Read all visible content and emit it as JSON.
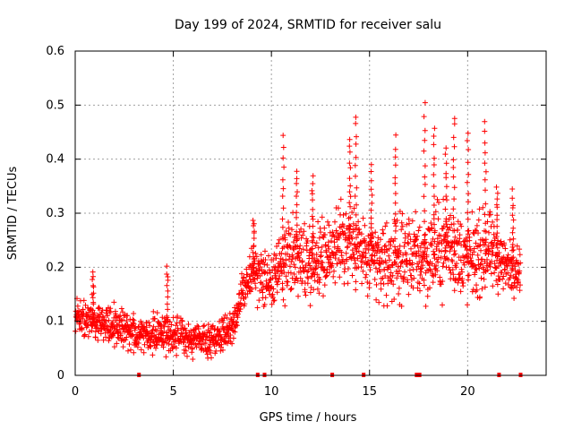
{
  "chart_data": {
    "type": "scatter",
    "title": "Day 199 of 2024, SRMTID for receiver salu",
    "xlabel": "GPS time / hours",
    "ylabel": "SRMTID / TECUs",
    "xlim": [
      0,
      24
    ],
    "ylim": [
      0,
      0.6
    ],
    "x_ticks": [
      0,
      5,
      10,
      15,
      20
    ],
    "x_tick_labels": [
      "0",
      "5",
      "10",
      "15",
      "20"
    ],
    "y_ticks": [
      0,
      0.1,
      0.2,
      0.3,
      0.4,
      0.5,
      0.6
    ],
    "y_tick_labels": [
      "0",
      "0.1",
      "0.2",
      "0.3",
      "0.4",
      "0.5",
      "0.6"
    ],
    "grid": true,
    "marker": "plus",
    "color": "#ff0000",
    "baseline_marker_hours": [
      3.25,
      9.3,
      9.65,
      13.1,
      14.7,
      17.4,
      17.55,
      21.6,
      22.7
    ],
    "envelope": [
      {
        "x": 0.0,
        "center": 0.11,
        "spread": 0.04
      },
      {
        "x": 1.0,
        "center": 0.1,
        "spread": 0.04
      },
      {
        "x": 2.0,
        "center": 0.09,
        "spread": 0.04
      },
      {
        "x": 3.0,
        "center": 0.08,
        "spread": 0.04
      },
      {
        "x": 4.0,
        "center": 0.08,
        "spread": 0.04
      },
      {
        "x": 5.0,
        "center": 0.075,
        "spread": 0.045
      },
      {
        "x": 6.0,
        "center": 0.065,
        "spread": 0.035
      },
      {
        "x": 7.0,
        "center": 0.065,
        "spread": 0.035
      },
      {
        "x": 8.0,
        "center": 0.09,
        "spread": 0.04
      },
      {
        "x": 8.5,
        "center": 0.15,
        "spread": 0.05
      },
      {
        "x": 9.0,
        "center": 0.19,
        "spread": 0.06
      },
      {
        "x": 10.0,
        "center": 0.17,
        "spread": 0.06
      },
      {
        "x": 11.0,
        "center": 0.22,
        "spread": 0.09
      },
      {
        "x": 12.0,
        "center": 0.21,
        "spread": 0.09
      },
      {
        "x": 13.0,
        "center": 0.23,
        "spread": 0.08
      },
      {
        "x": 14.0,
        "center": 0.25,
        "spread": 0.1
      },
      {
        "x": 15.0,
        "center": 0.21,
        "spread": 0.09
      },
      {
        "x": 16.0,
        "center": 0.21,
        "spread": 0.09
      },
      {
        "x": 17.0,
        "center": 0.22,
        "spread": 0.09
      },
      {
        "x": 18.0,
        "center": 0.22,
        "spread": 0.1
      },
      {
        "x": 19.0,
        "center": 0.24,
        "spread": 0.1
      },
      {
        "x": 20.0,
        "center": 0.21,
        "spread": 0.09
      },
      {
        "x": 21.0,
        "center": 0.23,
        "spread": 0.09
      },
      {
        "x": 22.0,
        "center": 0.2,
        "spread": 0.06
      },
      {
        "x": 22.7,
        "center": 0.2,
        "spread": 0.05
      }
    ],
    "peaks": [
      {
        "x": 0.9,
        "y": 0.19
      },
      {
        "x": 4.7,
        "y": 0.2
      },
      {
        "x": 9.1,
        "y": 0.29
      },
      {
        "x": 10.6,
        "y": 0.44
      },
      {
        "x": 11.3,
        "y": 0.38
      },
      {
        "x": 12.1,
        "y": 0.37
      },
      {
        "x": 14.3,
        "y": 0.48
      },
      {
        "x": 14.0,
        "y": 0.44
      },
      {
        "x": 15.1,
        "y": 0.39
      },
      {
        "x": 16.3,
        "y": 0.44
      },
      {
        "x": 17.8,
        "y": 0.5
      },
      {
        "x": 18.3,
        "y": 0.46
      },
      {
        "x": 18.9,
        "y": 0.42
      },
      {
        "x": 19.3,
        "y": 0.48
      },
      {
        "x": 20.0,
        "y": 0.45
      },
      {
        "x": 20.9,
        "y": 0.47
      },
      {
        "x": 21.5,
        "y": 0.35
      },
      {
        "x": 22.3,
        "y": 0.34
      }
    ]
  }
}
